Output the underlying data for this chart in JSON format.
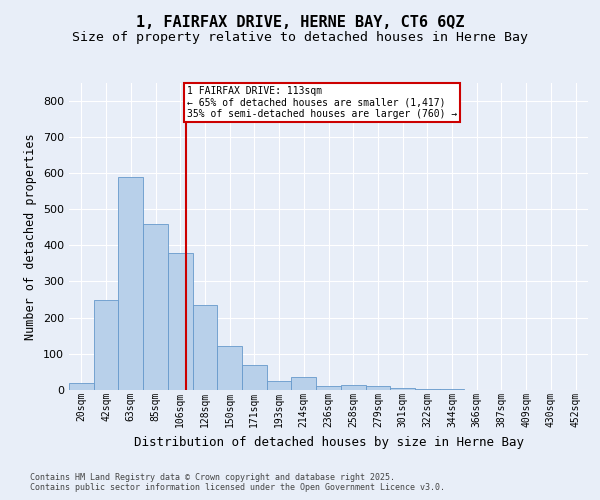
{
  "title_line1": "1, FAIRFAX DRIVE, HERNE BAY, CT6 6QZ",
  "title_line2": "Size of property relative to detached houses in Herne Bay",
  "xlabel": "Distribution of detached houses by size in Herne Bay",
  "ylabel": "Number of detached properties",
  "bin_labels": [
    "20sqm",
    "42sqm",
    "63sqm",
    "85sqm",
    "106sqm",
    "128sqm",
    "150sqm",
    "171sqm",
    "193sqm",
    "214sqm",
    "236sqm",
    "258sqm",
    "279sqm",
    "301sqm",
    "322sqm",
    "344sqm",
    "366sqm",
    "387sqm",
    "409sqm",
    "430sqm",
    "452sqm"
  ],
  "bar_values": [
    18,
    250,
    590,
    460,
    380,
    235,
    122,
    68,
    25,
    35,
    12,
    14,
    10,
    5,
    3,
    2,
    1,
    1,
    0,
    1,
    0
  ],
  "bar_color": "#b8d0ea",
  "bar_edge_color": "#6699cc",
  "red_line_value": 4,
  "annotation_text": "1 FAIRFAX DRIVE: 113sqm\n← 65% of detached houses are smaller (1,417)\n35% of semi-detached houses are larger (760) →",
  "annotation_box_color": "#ffffff",
  "annotation_box_edge_color": "#cc0000",
  "ylim": [
    0,
    850
  ],
  "yticks": [
    0,
    100,
    200,
    300,
    400,
    500,
    600,
    700,
    800
  ],
  "bg_color": "#e8eef8",
  "plot_bg_color": "#e8eef8",
  "footer_text": "Contains HM Land Registry data © Crown copyright and database right 2025.\nContains public sector information licensed under the Open Government Licence v3.0.",
  "title_fontsize": 11,
  "subtitle_fontsize": 9.5,
  "xlabel_fontsize": 9,
  "ylabel_fontsize": 8.5,
  "grid_color": "#ffffff",
  "tick_label_fontsize": 7,
  "footer_fontsize": 6,
  "annotation_fontsize": 7
}
